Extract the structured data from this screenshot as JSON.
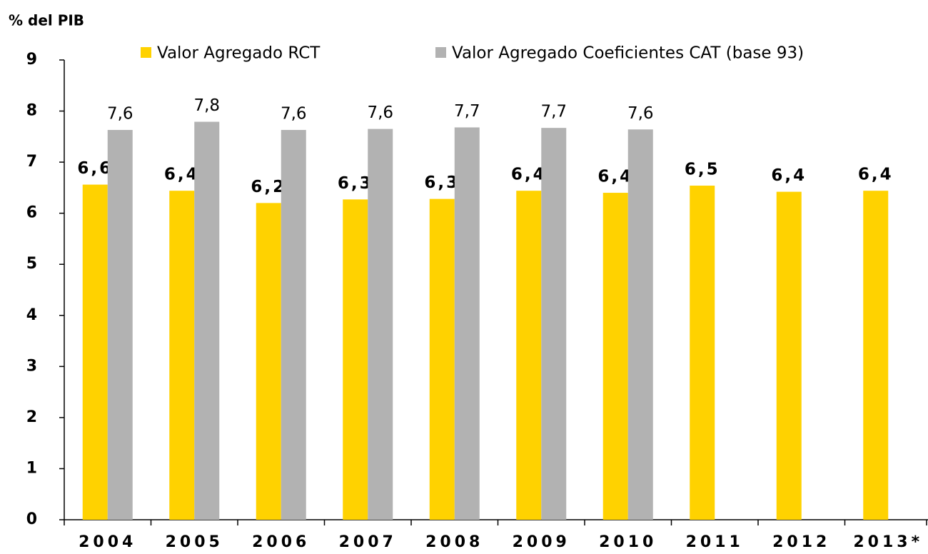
{
  "chart_data": {
    "type": "bar",
    "y_label": "% del PIB",
    "categories": [
      "2004",
      "2005",
      "2006",
      "2007",
      "2008",
      "2009",
      "2010",
      "2011",
      "2012",
      "2013*"
    ],
    "series": [
      {
        "name": "Valor Agregado RCT",
        "color": "#ffd200",
        "values": [
          6.56,
          6.44,
          6.2,
          6.27,
          6.28,
          6.44,
          6.4,
          6.54,
          6.42,
          6.44
        ],
        "value_labels": [
          "6,6",
          "6,4",
          "6,2",
          "6,3",
          "6,3",
          "6,4",
          "6,4",
          "6,5",
          "6,4",
          "6,4"
        ]
      },
      {
        "name": "Valor Agregado Coeficientes CAT (base 93)",
        "color": "#b2b2b2",
        "values": [
          7.63,
          7.79,
          7.63,
          7.65,
          7.68,
          7.67,
          7.64,
          null,
          null,
          null
        ],
        "value_labels": [
          "7,6",
          "7,8",
          "7,6",
          "7,6",
          "7,7",
          "7,7",
          "7,6",
          null,
          null,
          null
        ]
      }
    ],
    "ylim": [
      0,
      9
    ],
    "yticks": [
      0,
      1,
      2,
      3,
      4,
      5,
      6,
      7,
      8,
      9
    ],
    "grid": false
  }
}
